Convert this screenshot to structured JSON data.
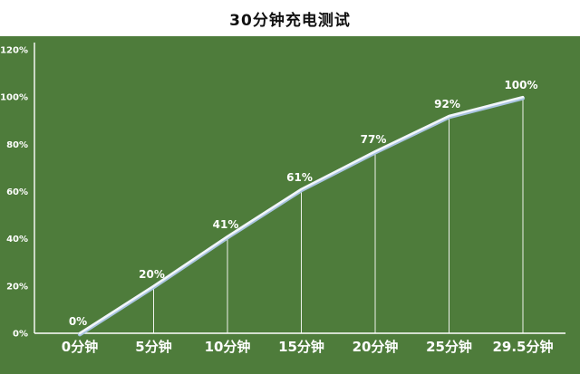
{
  "header": {
    "title": "30分钟充电测试"
  },
  "chart_data": {
    "type": "line",
    "title": "30分钟充电测试",
    "categories": [
      "0分钟",
      "5分钟",
      "10分钟",
      "15分钟",
      "20分钟",
      "25分钟",
      "29.5分钟"
    ],
    "values": [
      0,
      20,
      41,
      61,
      77,
      92,
      100
    ],
    "point_labels": [
      "0%",
      "20%",
      "41%",
      "61%",
      "77%",
      "92%",
      "100%"
    ],
    "y_ticks": [
      "0%",
      "20%",
      "40%",
      "60%",
      "80%",
      "100%",
      "120%"
    ],
    "xlabel": "",
    "ylabel": "",
    "ylim": [
      0,
      120
    ],
    "grid": false,
    "legend": "none",
    "colors": {
      "background": "#4e7c3b",
      "header_bg": "#ffffff",
      "title_text": "#111111",
      "axis": "#ffffff",
      "line": "#f2f6fb",
      "line_shadow": "#a9c4e0",
      "label_text": "#ffffff"
    }
  }
}
